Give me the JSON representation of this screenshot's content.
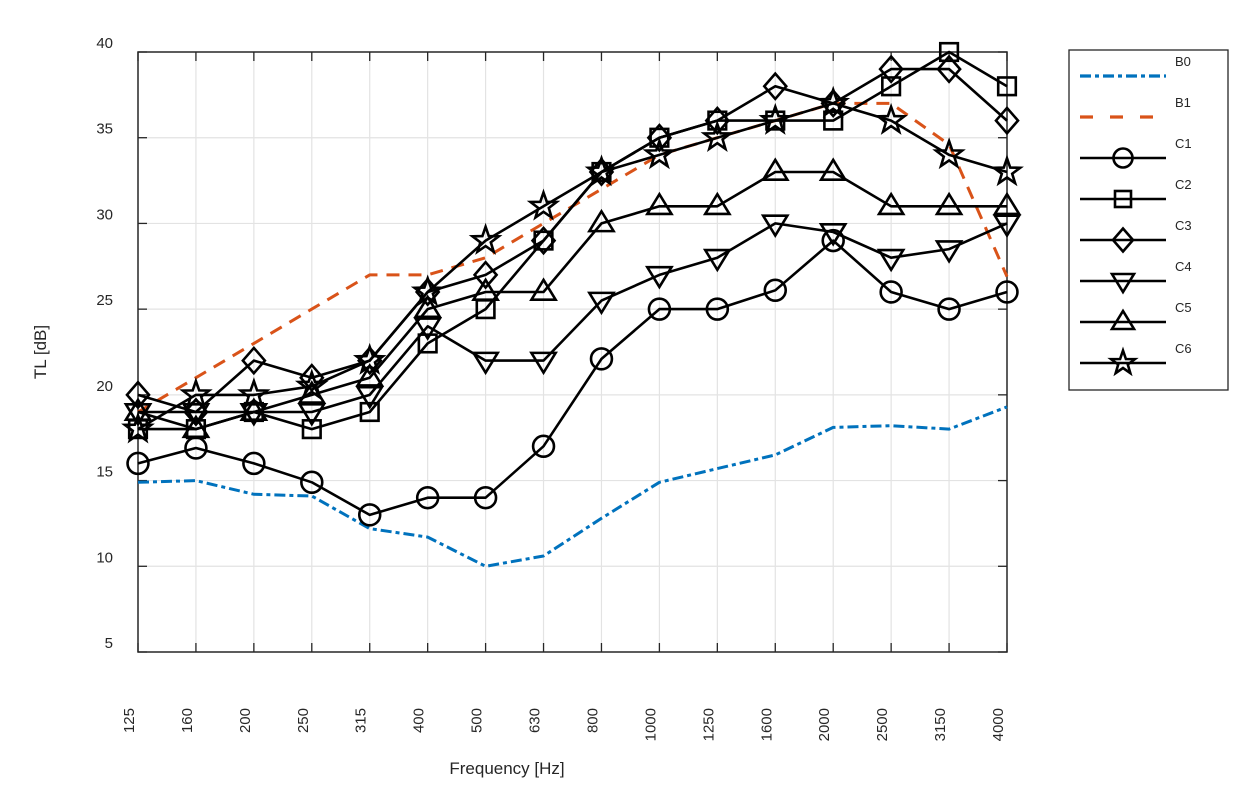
{
  "chart_data": {
    "type": "line",
    "title": "",
    "xlabel": "Frequency [Hz]",
    "ylabel": "TL [dB]",
    "categories": [
      "125",
      "160",
      "200",
      "250",
      "315",
      "400",
      "500",
      "630",
      "800",
      "1000",
      "1250",
      "1600",
      "2000",
      "2500",
      "3150",
      "4000"
    ],
    "ylim": [
      5,
      40
    ],
    "yticks": [
      "5",
      "10",
      "15",
      "20",
      "25",
      "30",
      "35",
      "40"
    ],
    "grid": true,
    "legend_position": "outside-top-right",
    "series": [
      {
        "name": "B0",
        "color": "#0072BD",
        "style": "dashdot",
        "marker": "none",
        "values": [
          14.9,
          15.0,
          14.2,
          14.1,
          12.2,
          11.7,
          10.0,
          10.6,
          12.8,
          14.9,
          15.7,
          16.5,
          18.1,
          18.2,
          18.0,
          19.3
        ]
      },
      {
        "name": "B1",
        "color": "#D95319",
        "style": "dashed",
        "marker": "none",
        "values": [
          19.0,
          21.0,
          23.0,
          25.0,
          27.0,
          27.0,
          28.0,
          30.0,
          32.0,
          34.0,
          35.0,
          36.0,
          37.0,
          37.0,
          34.6,
          26.9
        ]
      },
      {
        "name": "C1",
        "color": "#000000",
        "style": "solid",
        "marker": "circle",
        "values": [
          16.0,
          16.9,
          16.0,
          14.9,
          13.0,
          14.0,
          14.0,
          17.0,
          22.1,
          25.0,
          25.0,
          26.1,
          29.0,
          26.0,
          25.0,
          26.0
        ]
      },
      {
        "name": "C2",
        "color": "#000000",
        "style": "solid",
        "marker": "square",
        "values": [
          18.0,
          18.0,
          19.0,
          18.0,
          19.0,
          23.0,
          25.0,
          29.0,
          33.0,
          35.0,
          36.0,
          36.0,
          36.0,
          38.0,
          40.0,
          38.0
        ]
      },
      {
        "name": "C3",
        "color": "#000000",
        "style": "solid",
        "marker": "diamond",
        "values": [
          20.0,
          19.0,
          22.0,
          21.0,
          22.0,
          26.0,
          27.0,
          29.0,
          33.0,
          35.0,
          36.0,
          38.0,
          37.0,
          39.0,
          39.0,
          36.0
        ]
      },
      {
        "name": "C4",
        "color": "#000000",
        "style": "solid",
        "marker": "triangle-down",
        "values": [
          19.0,
          19.0,
          19.0,
          19.0,
          20.0,
          24.0,
          22.0,
          22.0,
          25.5,
          27.0,
          28.0,
          30.0,
          29.5,
          28.0,
          28.5,
          30.0
        ]
      },
      {
        "name": "C5",
        "color": "#000000",
        "style": "solid",
        "marker": "triangle-up",
        "values": [
          19.0,
          18.0,
          19.0,
          20.0,
          21.0,
          25.0,
          26.0,
          26.0,
          30.0,
          31.0,
          31.0,
          33.0,
          33.0,
          31.0,
          31.0,
          31.0
        ]
      },
      {
        "name": "C6",
        "color": "#000000",
        "style": "solid",
        "marker": "star",
        "values": [
          18.0,
          20.0,
          20.0,
          20.5,
          22.0,
          26.0,
          29.0,
          31.0,
          33.0,
          34.0,
          35.0,
          36.0,
          37.0,
          36.0,
          34.0,
          33.0
        ]
      }
    ]
  }
}
